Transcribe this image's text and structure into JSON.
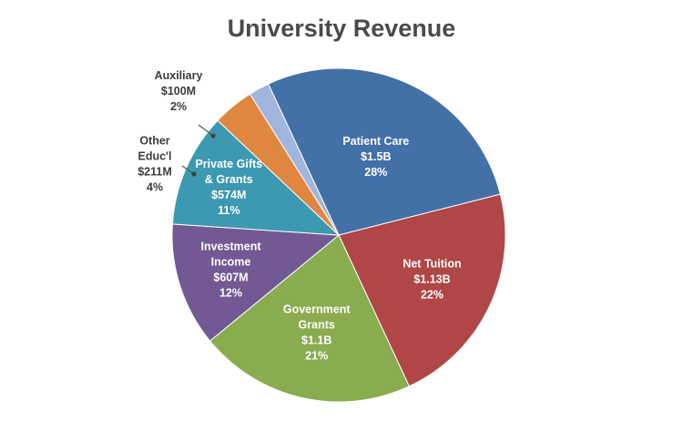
{
  "chart_data": {
    "type": "pie",
    "title": "University Revenue",
    "slices": [
      {
        "name": "Patient Care",
        "amount": "$1.5B",
        "percent_label": "28%",
        "value": 28,
        "color": "#4470a8"
      },
      {
        "name": "Net Tuition",
        "amount": "$1.13B",
        "percent_label": "22%",
        "value": 22,
        "color": "#b04645"
      },
      {
        "name": "Government Grants",
        "amount": "$1.1B",
        "percent_label": "21%",
        "value": 21,
        "color": "#89ac4e"
      },
      {
        "name": "Investment Income",
        "amount": "$607M",
        "percent_label": "12%",
        "value": 12,
        "color": "#725994"
      },
      {
        "name": "Private Gifts & Grants",
        "amount": "$574M",
        "percent_label": "11%",
        "value": 11,
        "color": "#3c99b1"
      },
      {
        "name": "Other Educ'l",
        "amount": "$211M",
        "percent_label": "4%",
        "value": 4,
        "color": "#df8741"
      },
      {
        "name": "Auxiliary",
        "amount": "$100M",
        "percent_label": "2%",
        "value": 2,
        "color": "#a2b5dc"
      }
    ]
  }
}
